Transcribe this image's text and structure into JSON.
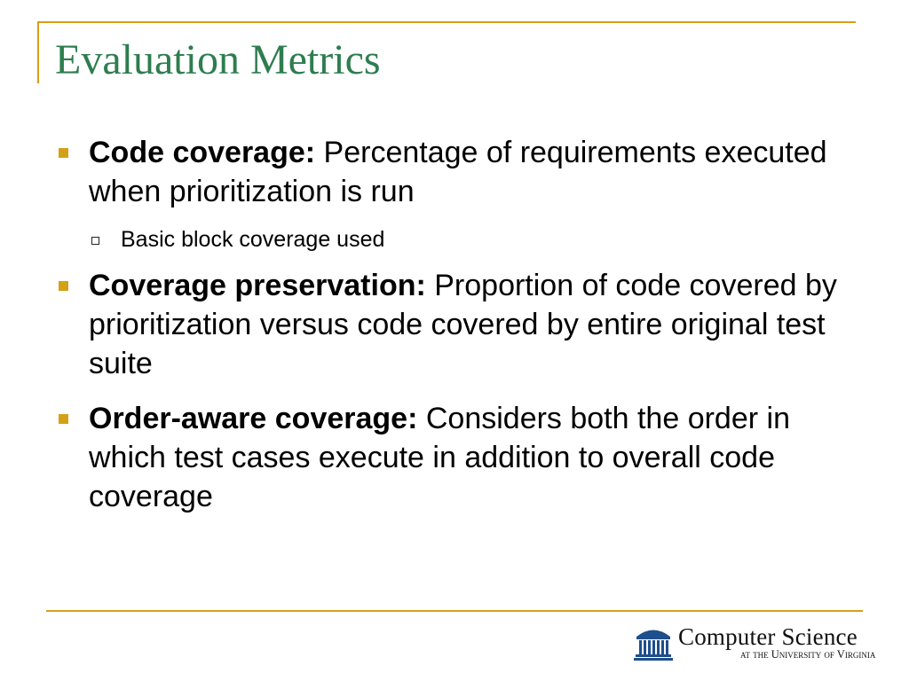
{
  "slide": {
    "title": "Evaluation Metrics",
    "bullets": [
      {
        "term": "Code coverage:",
        "text": " Percentage of requirements executed when prioritization is run",
        "subbullets": [
          "Basic block coverage used"
        ]
      },
      {
        "term": "Coverage preservation:",
        "text": " Proportion of code covered by prioritization versus code covered by entire original test suite",
        "subbullets": []
      },
      {
        "term": "Order-aware coverage:",
        "text": " Considers both the order in which test cases execute in addition to overall code coverage",
        "subbullets": []
      }
    ]
  },
  "footer": {
    "logo_icon": "rotunda-icon",
    "logo_name": "Computer Science",
    "logo_subtitle": "at the University of Virginia"
  },
  "colors": {
    "title": "#2E7D4F",
    "accent": "#D4A017",
    "logo_blue": "#1F4E8C"
  }
}
